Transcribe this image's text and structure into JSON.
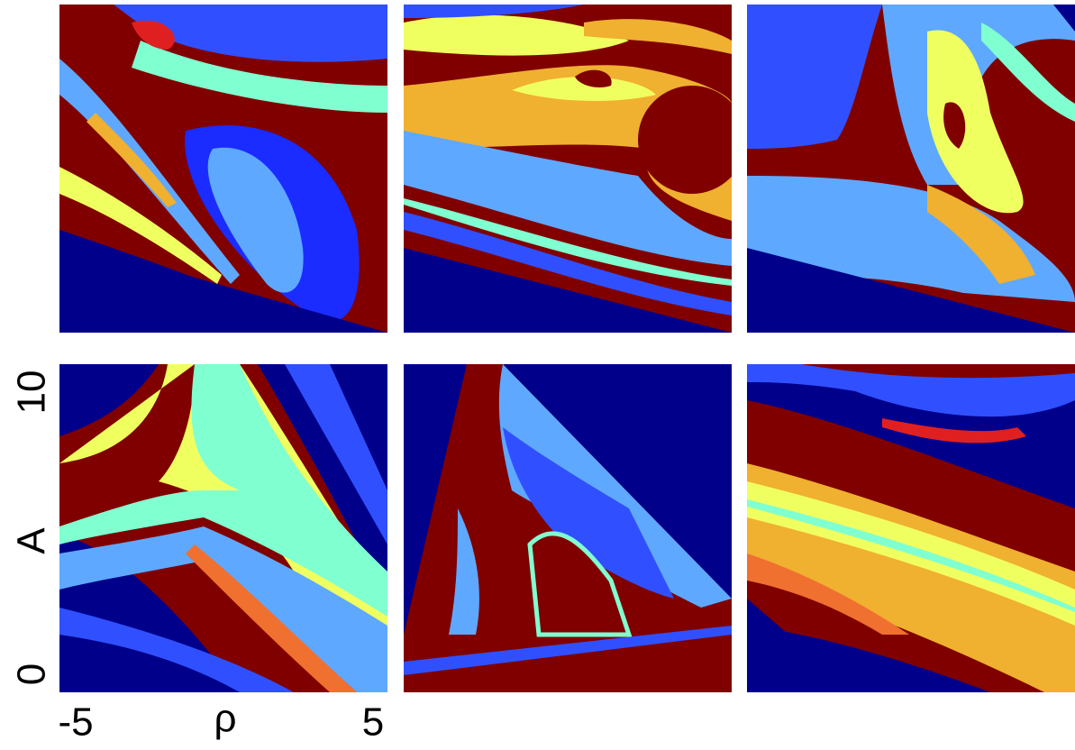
{
  "axes": {
    "x_label": "ρ",
    "y_label": "A",
    "x_ticks": [
      "-5",
      "5"
    ],
    "y_ticks": [
      "0",
      "10"
    ]
  }
}
